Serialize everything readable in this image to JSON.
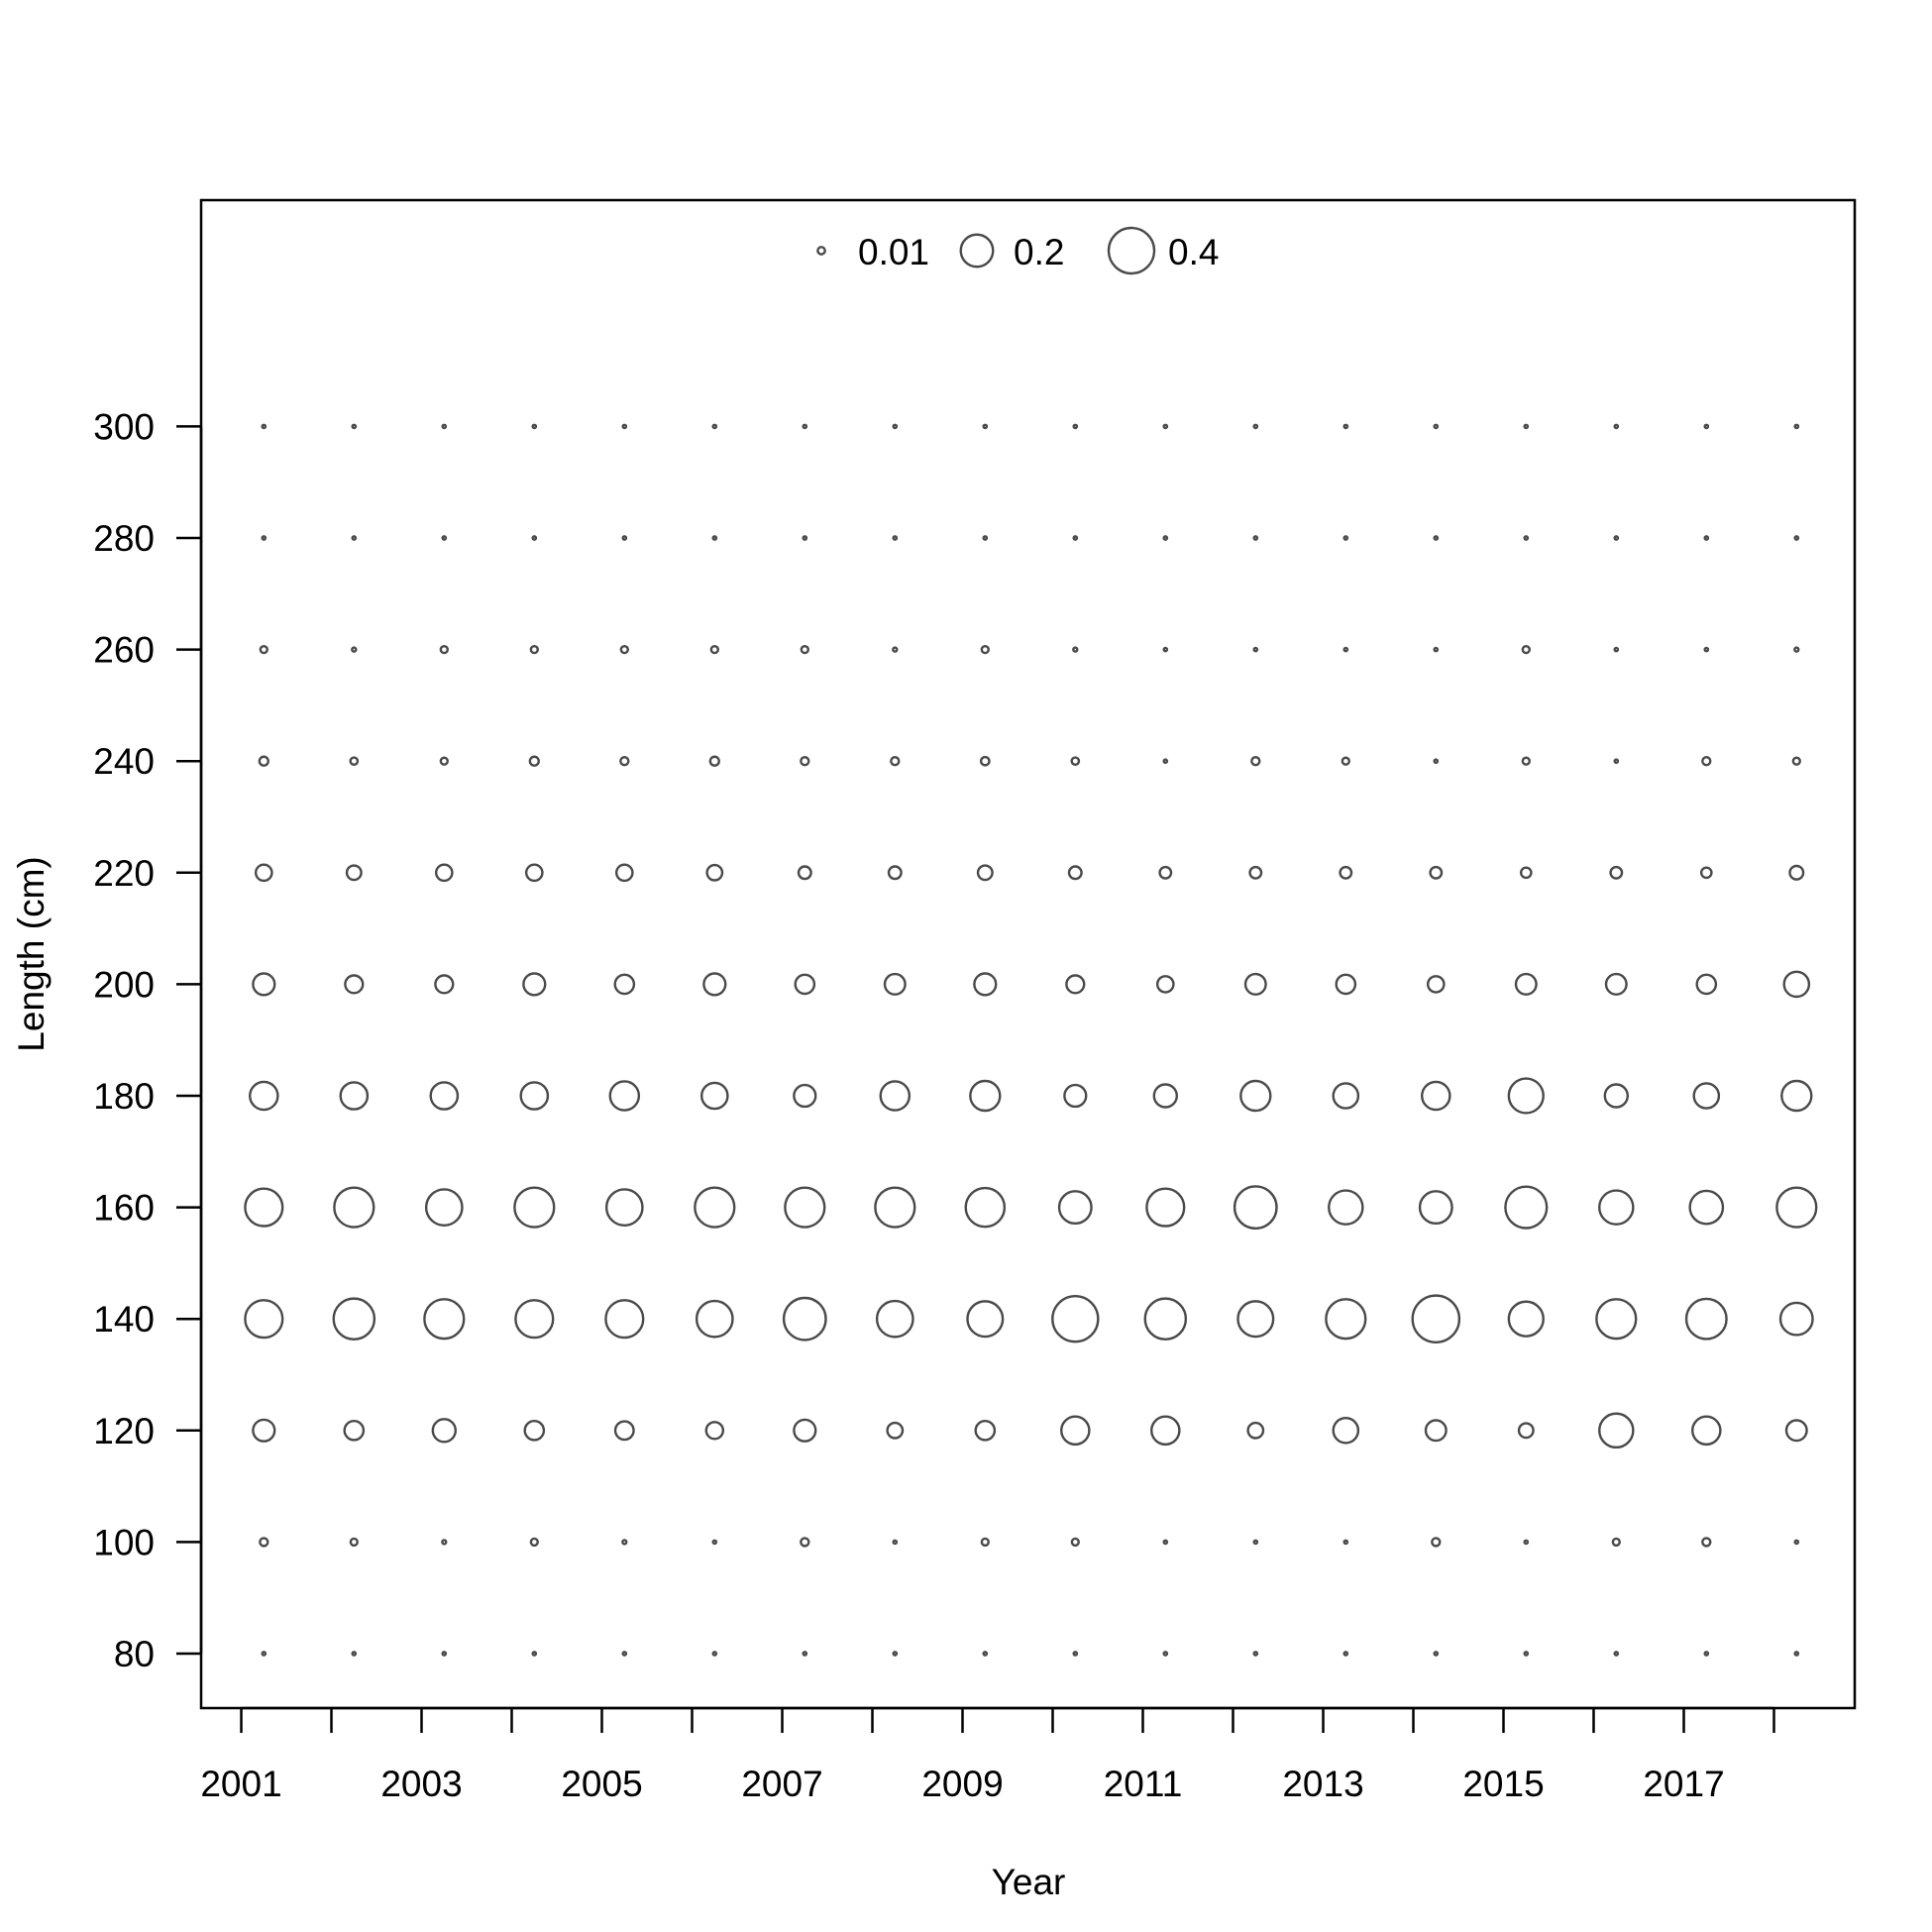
{
  "chart_data": {
    "type": "scatter",
    "subtype": "bubble",
    "title": "",
    "xlabel": "Year",
    "ylabel": "Length (cm)",
    "xlim": [
      2000.55,
      2019.1
    ],
    "ylim": [
      70,
      340
    ],
    "x_ticks": [
      2001,
      2002,
      2003,
      2004,
      2005,
      2006,
      2007,
      2008,
      2009,
      2010,
      2011,
      2012,
      2013,
      2014,
      2015,
      2016,
      2017,
      2018
    ],
    "x_tick_labels": [
      "2001",
      "2003",
      "2005",
      "2007",
      "2009",
      "2011",
      "2013",
      "2015",
      "2017"
    ],
    "y_ticks": [
      80,
      100,
      120,
      140,
      160,
      180,
      200,
      220,
      240,
      260,
      280,
      300
    ],
    "y_tick_labels": [
      "80",
      "100",
      "120",
      "140",
      "160",
      "180",
      "200",
      "220",
      "240",
      "260",
      "280",
      "300"
    ],
    "grid": false,
    "bubble_color": "#4a4a4a",
    "legend": {
      "position": "top-center",
      "entries": [
        {
          "label": "0.01",
          "value": 0.01
        },
        {
          "label": "0.2",
          "value": 0.2
        },
        {
          "label": "0.4",
          "value": 0.4
        }
      ]
    },
    "years": [
      2001.25,
      2002.25,
      2003.25,
      2004.25,
      2005.25,
      2006.25,
      2007.25,
      2008.25,
      2009.25,
      2010.25,
      2011.25,
      2012.25,
      2013.25,
      2014.25,
      2015.25,
      2016.25,
      2017.25,
      2018.25
    ],
    "lengths": [
      80,
      100,
      120,
      140,
      160,
      180,
      200,
      220,
      240,
      260,
      280,
      300
    ],
    "proportions": [
      [
        0.002,
        0.002,
        0.002,
        0.002,
        0.002,
        0.002,
        0.002,
        0.002,
        0.002,
        0.002,
        0.002,
        0.002,
        0.002,
        0.002,
        0.002,
        0.002,
        0.002,
        0.002
      ],
      [
        0.012,
        0.009,
        0.003,
        0.009,
        0.003,
        0.002,
        0.012,
        0.002,
        0.009,
        0.009,
        0.002,
        0.002,
        0.002,
        0.012,
        0.002,
        0.009,
        0.012,
        0.002
      ],
      [
        0.09,
        0.07,
        0.1,
        0.07,
        0.065,
        0.055,
        0.09,
        0.045,
        0.07,
        0.15,
        0.15,
        0.045,
        0.12,
        0.08,
        0.04,
        0.22,
        0.15,
        0.08
      ],
      [
        0.27,
        0.32,
        0.3,
        0.27,
        0.27,
        0.25,
        0.34,
        0.25,
        0.24,
        0.4,
        0.32,
        0.24,
        0.3,
        0.42,
        0.23,
        0.3,
        0.31,
        0.2
      ],
      [
        0.27,
        0.3,
        0.25,
        0.3,
        0.25,
        0.3,
        0.3,
        0.3,
        0.29,
        0.2,
        0.27,
        0.34,
        0.22,
        0.2,
        0.33,
        0.22,
        0.21,
        0.3
      ],
      [
        0.15,
        0.14,
        0.14,
        0.14,
        0.16,
        0.13,
        0.09,
        0.16,
        0.17,
        0.09,
        0.1,
        0.17,
        0.12,
        0.15,
        0.23,
        0.1,
        0.12,
        0.17
      ],
      [
        0.09,
        0.06,
        0.06,
        0.09,
        0.07,
        0.09,
        0.07,
        0.08,
        0.09,
        0.06,
        0.05,
        0.08,
        0.07,
        0.05,
        0.08,
        0.08,
        0.07,
        0.12
      ],
      [
        0.05,
        0.04,
        0.05,
        0.05,
        0.05,
        0.045,
        0.03,
        0.03,
        0.04,
        0.03,
        0.025,
        0.025,
        0.025,
        0.025,
        0.02,
        0.025,
        0.02,
        0.035
      ],
      [
        0.015,
        0.01,
        0.009,
        0.015,
        0.012,
        0.015,
        0.012,
        0.012,
        0.013,
        0.01,
        0.002,
        0.012,
        0.009,
        0.002,
        0.009,
        0.002,
        0.012,
        0.009
      ],
      [
        0.009,
        0.003,
        0.009,
        0.009,
        0.009,
        0.009,
        0.009,
        0.003,
        0.009,
        0.003,
        0.002,
        0.002,
        0.002,
        0.002,
        0.009,
        0.002,
        0.002,
        0.003
      ],
      [
        0.002,
        0.002,
        0.002,
        0.002,
        0.002,
        0.002,
        0.002,
        0.002,
        0.002,
        0.002,
        0.002,
        0.002,
        0.002,
        0.002,
        0.002,
        0.002,
        0.002,
        0.002
      ],
      [
        0.002,
        0.002,
        0.002,
        0.002,
        0.002,
        0.002,
        0.002,
        0.002,
        0.002,
        0.002,
        0.002,
        0.002,
        0.002,
        0.002,
        0.002,
        0.002,
        0.002,
        0.002
      ]
    ]
  }
}
